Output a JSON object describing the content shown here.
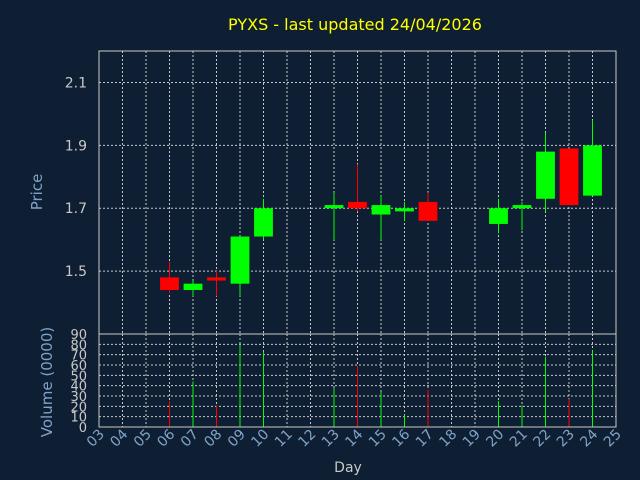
{
  "chart_data": {
    "type": "candlestick",
    "title": "PYXS - last updated 24/04/2026",
    "xlabel": "Day",
    "ylabel": "Price",
    "volume_ylabel": "Volume (0000)",
    "x_ticks": [
      "03",
      "04",
      "05",
      "06",
      "07",
      "08",
      "09",
      "10",
      "11",
      "12",
      "13",
      "14",
      "15",
      "16",
      "17",
      "18",
      "19",
      "20",
      "21",
      "22",
      "23",
      "24",
      "25"
    ],
    "y_ticks": [
      "1.5",
      "1.7",
      "1.9",
      "2.1"
    ],
    "ylim": [
      1.3,
      2.2
    ],
    "volume_ticks": [
      "0",
      "10",
      "20",
      "30",
      "40",
      "50",
      "60",
      "70",
      "80",
      "90"
    ],
    "volume_ylim": [
      0,
      90
    ],
    "grid": true,
    "up_color": "#00ff00",
    "down_color": "#ff0000",
    "candles": [
      {
        "day": "06",
        "open": 1.48,
        "high": 1.53,
        "low": 1.43,
        "close": 1.44
      },
      {
        "day": "07",
        "open": 1.44,
        "high": 1.47,
        "low": 1.42,
        "close": 1.46
      },
      {
        "day": "08",
        "open": 1.48,
        "high": 1.5,
        "low": 1.42,
        "close": 1.47
      },
      {
        "day": "09",
        "open": 1.46,
        "high": 1.61,
        "low": 1.42,
        "close": 1.61
      },
      {
        "day": "10",
        "open": 1.61,
        "high": 1.73,
        "low": 1.6,
        "close": 1.7
      },
      {
        "day": "13",
        "open": 1.7,
        "high": 1.75,
        "low": 1.6,
        "close": 1.71
      },
      {
        "day": "14",
        "open": 1.72,
        "high": 1.84,
        "low": 1.69,
        "close": 1.7
      },
      {
        "day": "15",
        "open": 1.68,
        "high": 1.74,
        "low": 1.6,
        "close": 1.71
      },
      {
        "day": "16",
        "open": 1.69,
        "high": 1.72,
        "low": 1.66,
        "close": 1.7
      },
      {
        "day": "17",
        "open": 1.72,
        "high": 1.75,
        "low": 1.66,
        "close": 1.66
      },
      {
        "day": "20",
        "open": 1.65,
        "high": 1.73,
        "low": 1.62,
        "close": 1.7
      },
      {
        "day": "21",
        "open": 1.7,
        "high": 1.72,
        "low": 1.63,
        "close": 1.71
      },
      {
        "day": "22",
        "open": 1.73,
        "high": 1.94,
        "low": 1.69,
        "close": 1.88
      },
      {
        "day": "23",
        "open": 1.89,
        "high": 1.89,
        "low": 1.71,
        "close": 1.71
      },
      {
        "day": "24",
        "open": 1.74,
        "high": 1.98,
        "low": 1.74,
        "close": 1.9
      }
    ],
    "volumes": [
      {
        "day": "06",
        "value": 25,
        "color": "#ff0000"
      },
      {
        "day": "07",
        "value": 44,
        "color": "#00ff00"
      },
      {
        "day": "08",
        "value": 21,
        "color": "#ff0000"
      },
      {
        "day": "09",
        "value": 80,
        "color": "#00ff00"
      },
      {
        "day": "10",
        "value": 73,
        "color": "#00ff00"
      },
      {
        "day": "13",
        "value": 38,
        "color": "#00ff00"
      },
      {
        "day": "14",
        "value": 59,
        "color": "#ff0000"
      },
      {
        "day": "15",
        "value": 34,
        "color": "#00ff00"
      },
      {
        "day": "16",
        "value": 12,
        "color": "#00ff00"
      },
      {
        "day": "17",
        "value": 36,
        "color": "#ff0000"
      },
      {
        "day": "20",
        "value": 25,
        "color": "#00ff00"
      },
      {
        "day": "21",
        "value": 21,
        "color": "#00ff00"
      },
      {
        "day": "22",
        "value": 68,
        "color": "#00ff00"
      },
      {
        "day": "23",
        "value": 27,
        "color": "#ff0000"
      },
      {
        "day": "24",
        "value": 74,
        "color": "#00ff00"
      }
    ]
  }
}
